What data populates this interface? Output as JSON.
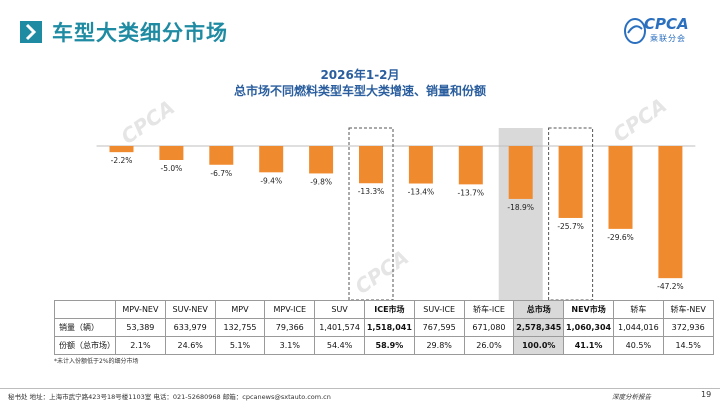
{
  "header": {
    "title": "车型大类细分市场",
    "logo_text": "CPCA",
    "logo_sub": "乘联分会"
  },
  "chart_data": {
    "type": "bar",
    "title": "2026年1-2月",
    "subtitle": "总市场不同燃料类型车型大类增速、销量和份额",
    "categories": [
      "MPV-NEV",
      "SUV-NEV",
      "MPV",
      "MPV-ICE",
      "SUV",
      "ICE市场",
      "SUV-ICE",
      "轿车-ICE",
      "总市场",
      "NEV市场",
      "轿车",
      "轿车-NEV"
    ],
    "series": [
      {
        "name": "增速",
        "values": [
          -2.2,
          -5.0,
          -6.7,
          -9.4,
          -9.8,
          -13.3,
          -13.4,
          -13.7,
          -18.9,
          -25.7,
          -29.6,
          -47.2
        ]
      }
    ],
    "data_labels": [
      "-2.2%",
      "-5.0%",
      "-6.7%",
      "-9.4%",
      "-9.8%",
      "-13.3%",
      "-13.4%",
      "-13.7%",
      "-18.9%",
      "-25.7%",
      "-29.6%",
      "-47.2%"
    ],
    "ylim": [
      -50,
      0
    ],
    "bar_color": "#f08a2e",
    "highlight_dashed": [
      "ICE市场",
      "NEV市场"
    ],
    "highlight_gray": [
      "总市场"
    ]
  },
  "table": {
    "header_blank": "",
    "columns": [
      "MPV-NEV",
      "SUV-NEV",
      "MPV",
      "MPV-ICE",
      "SUV",
      "ICE市场",
      "SUV-ICE",
      "轿车-ICE",
      "总市场",
      "NEV市场",
      "轿车",
      "轿车-NEV"
    ],
    "rows": [
      {
        "label": "销量（辆）",
        "values": [
          "53,389",
          "633,979",
          "132,755",
          "79,366",
          "1,401,574",
          "1,518,041",
          "767,595",
          "671,080",
          "2,578,345",
          "1,060,304",
          "1,044,016",
          "372,936"
        ]
      },
      {
        "label": "份额（总市场）",
        "values": [
          "2.1%",
          "24.6%",
          "5.1%",
          "3.1%",
          "54.4%",
          "58.9%",
          "29.8%",
          "26.0%",
          "100.0%",
          "41.1%",
          "40.5%",
          "14.5%"
        ]
      }
    ]
  },
  "note": "*未计入份额低于2%的细分市场",
  "watermark": "CPCA",
  "footer": {
    "address": "秘书处   地址：上海市武宁路423号18号楼1103室   电话：021-52680968   邮箱：cpcanews@sxtauto.com.cn",
    "report": "深度分析报告",
    "page": "19"
  },
  "colors": {
    "title": "#1f8ba3",
    "chart_title": "#2a5e9e",
    "bar": "#f08a2e",
    "total_bg": "#d9d9d9"
  }
}
